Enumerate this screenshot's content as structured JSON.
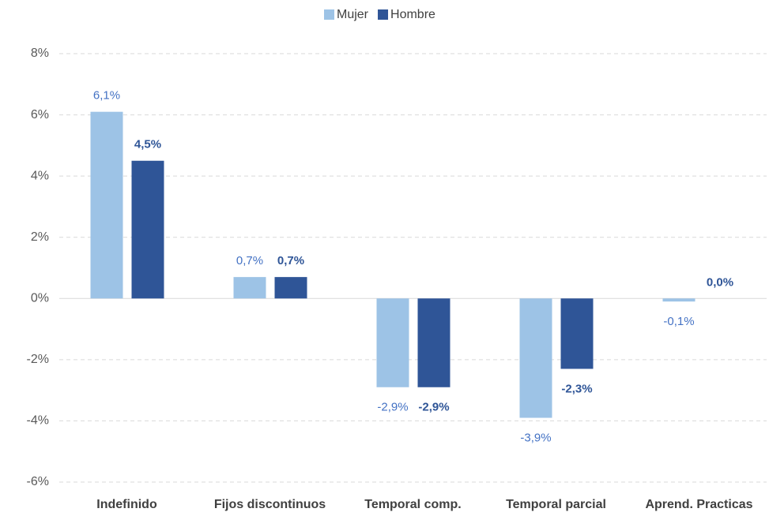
{
  "chart_data": {
    "type": "bar",
    "categories": [
      "Indefinido",
      "Fijos discontinuos",
      "Temporal comp.",
      "Temporal parcial",
      "Aprend. Practicas"
    ],
    "series": [
      {
        "name": "Mujer",
        "color": "#9dc3e6",
        "values": [
          6.1,
          0.7,
          -2.9,
          -3.9,
          -0.1
        ],
        "value_labels": [
          "6,1%",
          "0,7%",
          "-2,9%",
          "-3,9%",
          "-0,1%"
        ]
      },
      {
        "name": "Hombre",
        "color": "#2f5597",
        "values": [
          4.5,
          0.7,
          -2.9,
          -2.3,
          0.0
        ],
        "value_labels": [
          "4,5%",
          "0,7%",
          "-2,9%",
          "-2,3%",
          "0,0%"
        ]
      }
    ],
    "ylim": [
      -6,
      8
    ],
    "yticks": [
      {
        "value": -6,
        "label": "-6%"
      },
      {
        "value": -4,
        "label": "-4%"
      },
      {
        "value": -2,
        "label": "-2%"
      },
      {
        "value": 0,
        "label": "0%"
      },
      {
        "value": 2,
        "label": "2%"
      },
      {
        "value": 4,
        "label": "4%"
      },
      {
        "value": 6,
        "label": "6%"
      },
      {
        "value": 8,
        "label": "8%"
      }
    ],
    "grid": true,
    "legend": "top"
  }
}
